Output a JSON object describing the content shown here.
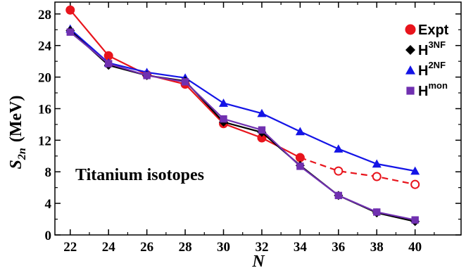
{
  "chart_data": {
    "type": "line",
    "xlabel": "N",
    "ylabel_main": "S",
    "ylabel_sub": "2n",
    "ylabel_unit": "(MeV)",
    "xlim": [
      21.2,
      42.4
    ],
    "ylim": [
      0,
      29.5
    ],
    "xticks": [
      22,
      24,
      26,
      28,
      30,
      32,
      34,
      36,
      38,
      40
    ],
    "yticks": [
      0,
      4,
      8,
      12,
      16,
      20,
      24,
      28
    ],
    "grid": false,
    "legend_position": "top-right",
    "annotation": "Titanium isotopes",
    "series": [
      {
        "name": "Expt",
        "color": "#e8141c",
        "marker": "circle",
        "x": [
          22,
          24,
          26,
          28,
          30,
          32,
          34
        ],
        "y": [
          28.5,
          22.7,
          20.3,
          19.1,
          14.1,
          12.3,
          9.8
        ]
      },
      {
        "name": "Expt-extrapolated",
        "color": "#e8141c",
        "marker": "open-circle",
        "dashed": true,
        "legend": false,
        "x": [
          34,
          36,
          38,
          40
        ],
        "y": [
          9.8,
          8.1,
          7.4,
          6.4
        ]
      },
      {
        "name": "H",
        "name_sup": "3NF",
        "color": "#000000",
        "marker": "diamond",
        "x": [
          22,
          24,
          26,
          28,
          30,
          32,
          34,
          36,
          38,
          40
        ],
        "y": [
          25.9,
          21.5,
          20.2,
          19.5,
          14.3,
          13.0,
          8.8,
          5.0,
          2.8,
          1.7
        ]
      },
      {
        "name": "H",
        "name_sup": "2NF",
        "color": "#1414e6",
        "marker": "triangle",
        "x": [
          22,
          24,
          26,
          28,
          30,
          32,
          34,
          36,
          38,
          40
        ],
        "y": [
          26.1,
          21.8,
          20.6,
          19.9,
          16.7,
          15.4,
          13.1,
          10.9,
          9.0,
          8.1
        ]
      },
      {
        "name": "H",
        "name_sup": "mon",
        "color": "#7030b0",
        "marker": "square",
        "x": [
          22,
          24,
          26,
          28,
          30,
          32,
          34,
          36,
          38,
          40
        ],
        "y": [
          25.7,
          21.7,
          20.2,
          19.4,
          14.7,
          13.3,
          8.7,
          5.0,
          2.9,
          1.9
        ]
      }
    ]
  }
}
